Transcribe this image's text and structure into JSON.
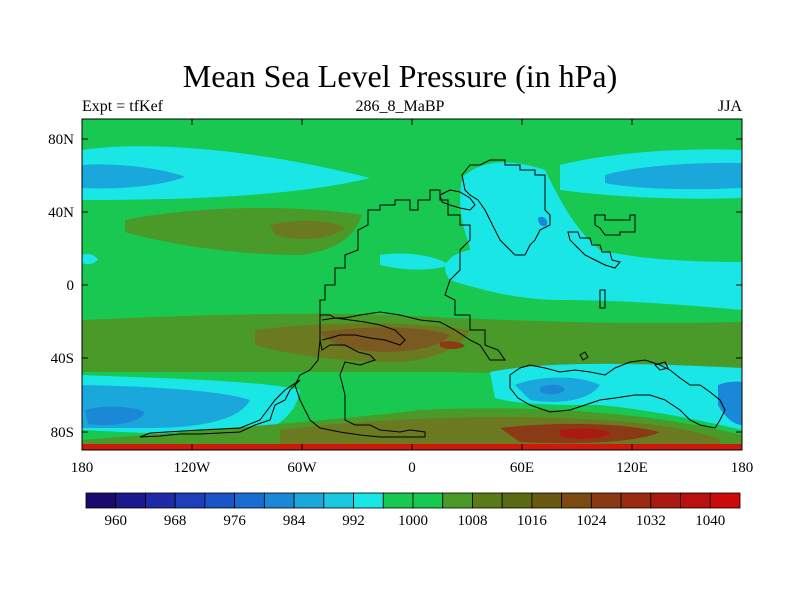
{
  "title": "Mean Sea Level Pressure (in hPa)",
  "subtitle_left": "Expt = tfKef",
  "subtitle_center": "286_8_MaBP",
  "subtitle_right": "JJA",
  "lat_ticks": [
    "80N",
    "40N",
    "0",
    "40S",
    "80S"
  ],
  "lon_ticks": [
    "180",
    "120W",
    "60W",
    "0",
    "60E",
    "120E",
    "180"
  ],
  "colorbar": {
    "labels": [
      "960",
      "968",
      "976",
      "984",
      "992",
      "1000",
      "1008",
      "1016",
      "1024",
      "1032",
      "1040"
    ],
    "colors": [
      "#1a0a6e",
      "#1a1a8c",
      "#1f2aa6",
      "#1f3fba",
      "#1a55c8",
      "#1a6dd0",
      "#1a88d6",
      "#1aa8dc",
      "#1ac8e0",
      "#1ae6e6",
      "#18c850",
      "#18c850",
      "#4a9a2a",
      "#5a7a1a",
      "#5a6a10",
      "#6a5a10",
      "#7a4a10",
      "#8a3a10",
      "#9a2a10",
      "#aa1a10",
      "#ba1010",
      "#cc0a0a"
    ]
  },
  "map": {
    "type": "contour-map",
    "variable": "Mean Sea Level Pressure",
    "units": "hPa",
    "season": "JJA",
    "colors": {
      "high_green": "#18c850",
      "mid_green": "#4a9a2a",
      "olive": "#6b7a20",
      "brown": "#7a5a20",
      "red_brown": "#8a3a15",
      "cyan": "#1ae6e6",
      "light_blue": "#1ab8e0",
      "blue": "#1a88d6",
      "deep_blue": "#1a6dd0",
      "red": "#cc1a0a"
    }
  }
}
